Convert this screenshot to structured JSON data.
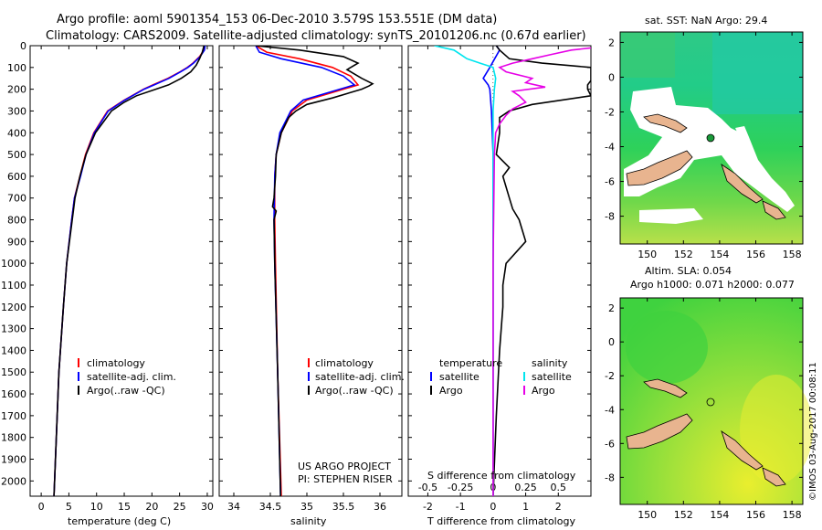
{
  "header": {
    "line1": "Argo profile: aoml 5901354_153 06-Dec-2010 3.579S 153.551E (DM data)",
    "line2": "Climatology: CARS2009. Satellite-adjusted climatology: synTS_20101206.nc (0.67d earlier)"
  },
  "footer": {
    "credit": "©IMOS 03-Aug-2017 00:08:11",
    "project": "US ARGO PROJECT",
    "pi": "PI: STEPHEN RISER"
  },
  "colors": {
    "climatology": "#ff0000",
    "satellite": "#0000ff",
    "argo": "#000000",
    "cyan": "#00e5ee",
    "magenta": "#e600e6"
  },
  "chart_data": [
    {
      "type": "line",
      "id": "temperature",
      "xlabel": "temperature (deg C)",
      "ylabel": "",
      "xlim": [
        -2,
        31
      ],
      "ylim": [
        2070,
        0
      ],
      "xticks": [
        0,
        5,
        10,
        15,
        20,
        25,
        30
      ],
      "yticks": [
        0,
        100,
        200,
        300,
        400,
        500,
        600,
        700,
        800,
        900,
        1000,
        1100,
        1200,
        1300,
        1400,
        1500,
        1600,
        1700,
        1800,
        1900,
        2000
      ],
      "legend": [
        "climatology",
        "satellite-adj. clim.",
        "Argo(..raw -QC)"
      ],
      "series": [
        {
          "name": "climatology",
          "color": "#ff0000",
          "depth": [
            0,
            20,
            50,
            80,
            100,
            120,
            150,
            180,
            200,
            250,
            300,
            400,
            500,
            600,
            700,
            800,
            1000,
            1200,
            1500,
            2070
          ],
          "values": [
            29.5,
            29.4,
            28.6,
            27.4,
            26.4,
            25.1,
            22.9,
            20.2,
            18.5,
            15.0,
            12.0,
            9.5,
            8.0,
            7.0,
            6.0,
            5.5,
            4.6,
            4.0,
            3.2,
            2.3
          ]
        },
        {
          "name": "satellite-adj. clim.",
          "color": "#0000ff",
          "depth": [
            0,
            20,
            50,
            80,
            100,
            120,
            150,
            180,
            200,
            250,
            300,
            400,
            500,
            600,
            700,
            800,
            1000,
            1200,
            1500,
            2070
          ],
          "values": [
            29.6,
            29.5,
            28.7,
            27.5,
            26.5,
            25.2,
            23.1,
            20.4,
            18.6,
            15.1,
            12.1,
            9.6,
            8.1,
            7.1,
            6.0,
            5.5,
            4.6,
            4.0,
            3.2,
            2.3
          ]
        },
        {
          "name": "Argo(..raw -QC)",
          "color": "#000000",
          "depth": [
            0,
            10,
            30,
            60,
            90,
            120,
            150,
            180,
            200,
            230,
            260,
            300,
            400,
            500,
            600,
            700,
            800,
            1000,
            1200,
            1500,
            2070
          ],
          "values": [
            29.4,
            29.3,
            29.1,
            28.6,
            28.0,
            27.0,
            25.3,
            23.0,
            20.7,
            17.2,
            15.0,
            12.7,
            9.8,
            8.1,
            7.0,
            6.1,
            5.6,
            4.6,
            4.0,
            3.2,
            2.3
          ]
        }
      ]
    },
    {
      "type": "line",
      "id": "salinity",
      "xlabel": "salinity",
      "xlim": [
        33.8,
        36.3
      ],
      "ylim": [
        2070,
        0
      ],
      "xticks": [
        34,
        34.5,
        35,
        35.5,
        36
      ],
      "legend": [
        "climatology",
        "satellite-adj. clim.",
        "Argo(..raw -QC)"
      ],
      "series": [
        {
          "name": "climatology",
          "color": "#ff0000",
          "depth": [
            0,
            30,
            60,
            100,
            140,
            180,
            200,
            250,
            300,
            400,
            500,
            600,
            800,
            1000,
            1500,
            2070
          ],
          "values": [
            34.3,
            34.45,
            34.9,
            35.35,
            35.6,
            35.7,
            35.5,
            35.0,
            34.8,
            34.65,
            34.58,
            34.56,
            34.56,
            34.57,
            34.6,
            34.65
          ]
        },
        {
          "name": "satellite-adj. clim.",
          "color": "#0000ff",
          "depth": [
            0,
            30,
            60,
            100,
            140,
            180,
            200,
            250,
            300,
            400,
            500,
            600,
            800,
            1000,
            1500,
            2070
          ],
          "values": [
            34.3,
            34.35,
            34.65,
            35.2,
            35.5,
            35.65,
            35.45,
            34.95,
            34.78,
            34.63,
            34.58,
            34.56,
            34.55,
            34.56,
            34.6,
            34.64
          ]
        },
        {
          "name": "Argo(..raw -QC)",
          "color": "#000000",
          "depth": [
            0,
            20,
            50,
            80,
            110,
            150,
            175,
            185,
            200,
            240,
            270,
            300,
            330,
            400,
            500,
            600,
            700,
            740,
            760,
            800,
            1000,
            1500,
            2070
          ],
          "values": [
            34.3,
            34.9,
            35.5,
            35.7,
            35.55,
            35.75,
            35.9,
            35.85,
            35.75,
            35.35,
            35.0,
            34.85,
            34.75,
            34.65,
            34.58,
            34.57,
            34.55,
            34.53,
            34.58,
            34.55,
            34.56,
            34.6,
            34.64
          ]
        }
      ]
    },
    {
      "type": "line",
      "id": "difference",
      "xlabel": "T difference from climatology",
      "top_label": "S difference from climatology",
      "xlim": [
        -2.6,
        3.0
      ],
      "ylim": [
        2070,
        0
      ],
      "xticks": [
        -2,
        -1,
        0,
        1,
        2
      ],
      "sticks": [
        -0.5,
        -0.25,
        0,
        0.25,
        0.5
      ],
      "legend_headers": [
        "temperature",
        "salinity"
      ],
      "legend": [
        "satellite",
        "Argo",
        "satellite",
        "Argo"
      ],
      "series": [
        {
          "name": "T satellite",
          "color": "#0000ff",
          "depth": [
            0,
            20,
            60,
            100,
            150,
            180,
            200,
            300,
            500,
            1000,
            1500,
            2070
          ],
          "values": [
            0.1,
            0.2,
            0.05,
            -0.1,
            -0.3,
            -0.15,
            -0.1,
            -0.05,
            0,
            0,
            0,
            0
          ]
        },
        {
          "name": "T Argo",
          "color": "#000000",
          "depth": [
            0,
            20,
            60,
            80,
            100,
            130,
            160,
            180,
            200,
            230,
            270,
            300,
            330,
            400,
            500,
            560,
            600,
            700,
            750,
            800,
            900,
            1000,
            1100,
            1200,
            1400,
            1700,
            2070
          ],
          "values": [
            0.1,
            0.2,
            0.5,
            1.5,
            3.0,
            3.0,
            3.0,
            2.9,
            2.9,
            3.0,
            1.2,
            0.5,
            0.2,
            0.2,
            0.1,
            0.5,
            0.3,
            0.5,
            0.6,
            0.8,
            1.0,
            0.4,
            0.3,
            0.3,
            0.2,
            0.1,
            0
          ]
        },
        {
          "name": "S satellite",
          "color": "#00e5ee",
          "depth": [
            0,
            20,
            60,
            80,
            100,
            150,
            200,
            300,
            500,
            1000,
            1500,
            2070
          ],
          "values": [
            -0.45,
            -0.3,
            -0.2,
            -0.1,
            0.0,
            0.02,
            0.01,
            0,
            0,
            0,
            0,
            0
          ]
        },
        {
          "name": "S Argo",
          "color": "#e600e6",
          "depth": [
            0,
            20,
            40,
            60,
            80,
            100,
            120,
            150,
            170,
            190,
            210,
            230,
            260,
            290,
            320,
            360,
            400,
            500,
            1000,
            2070
          ],
          "values": [
            0.9,
            0.6,
            0.45,
            0.3,
            0.15,
            0.05,
            0.1,
            0.3,
            0.25,
            0.4,
            0.15,
            0.2,
            0.25,
            0.15,
            0.1,
            0.05,
            0.02,
            0.01,
            0,
            0
          ]
        }
      ]
    },
    {
      "type": "heatmap",
      "id": "sst-map",
      "title": "sat. SST: NaN  Argo: 29.4",
      "xticks": [
        150,
        152,
        154,
        156,
        158
      ],
      "yticks": [
        2,
        0,
        -2,
        -4,
        -6,
        -8
      ],
      "xlim": [
        148.5,
        158.6
      ],
      "ylim": [
        -9.6,
        2.6
      ],
      "float_position": [
        153.551,
        -3.579
      ]
    },
    {
      "type": "heatmap",
      "id": "sla-map",
      "title": "Altim. SLA: 0.054",
      "subtitle": "Argo h1000: 0.071  h2000: 0.077",
      "xticks": [
        150,
        152,
        154,
        156,
        158
      ],
      "yticks": [
        2,
        0,
        -2,
        -4,
        -6,
        -8
      ],
      "xlim": [
        148.5,
        158.6
      ],
      "ylim": [
        -9.6,
        2.6
      ],
      "float_position": [
        153.551,
        -3.579
      ]
    }
  ]
}
